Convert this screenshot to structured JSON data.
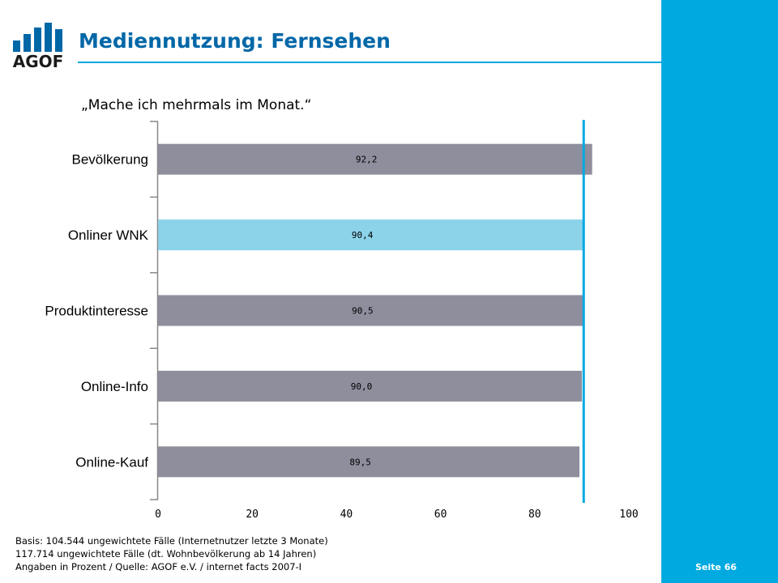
{
  "header": {
    "logo_text": "AGOF",
    "title": "Mediennutzung: Fernsehen"
  },
  "colors": {
    "brand_blue": "#0067a7",
    "accent_cyan": "#00a9e0",
    "bar_gray": "#8e8e9d",
    "bar_highlight": "#8cd3ea",
    "reference_line": "#00a9e0"
  },
  "chart_data": {
    "type": "bar",
    "orientation": "horizontal",
    "title": "„Mache ich mehrmals im Monat.“",
    "categories": [
      "Bevölkerung",
      "Onliner WNK",
      "Produktinteresse",
      "Online-Info",
      "Online-Kauf"
    ],
    "values": [
      92.2,
      90.4,
      90.5,
      90.0,
      89.5
    ],
    "value_labels": [
      "92,2",
      "90,4",
      "90,5",
      "90,0",
      "89,5"
    ],
    "highlight": "Onliner WNK",
    "reference_line_value": 90.4,
    "xlim": [
      0,
      100
    ],
    "x_ticks": [
      0,
      20,
      40,
      60,
      80,
      100
    ],
    "grid": false,
    "legend": "none"
  },
  "footer": {
    "lines": [
      "Basis: 104.544 ungewichtete Fälle (Internetnutzer letzte 3 Monate)",
      "117.714 ungewichtete Fälle (dt. Wohnbevölkerung ab 14 Jahren)",
      "Angaben in Prozent / Quelle: AGOF e.V. / internet facts 2007-I"
    ],
    "page_number": "Seite 66"
  }
}
